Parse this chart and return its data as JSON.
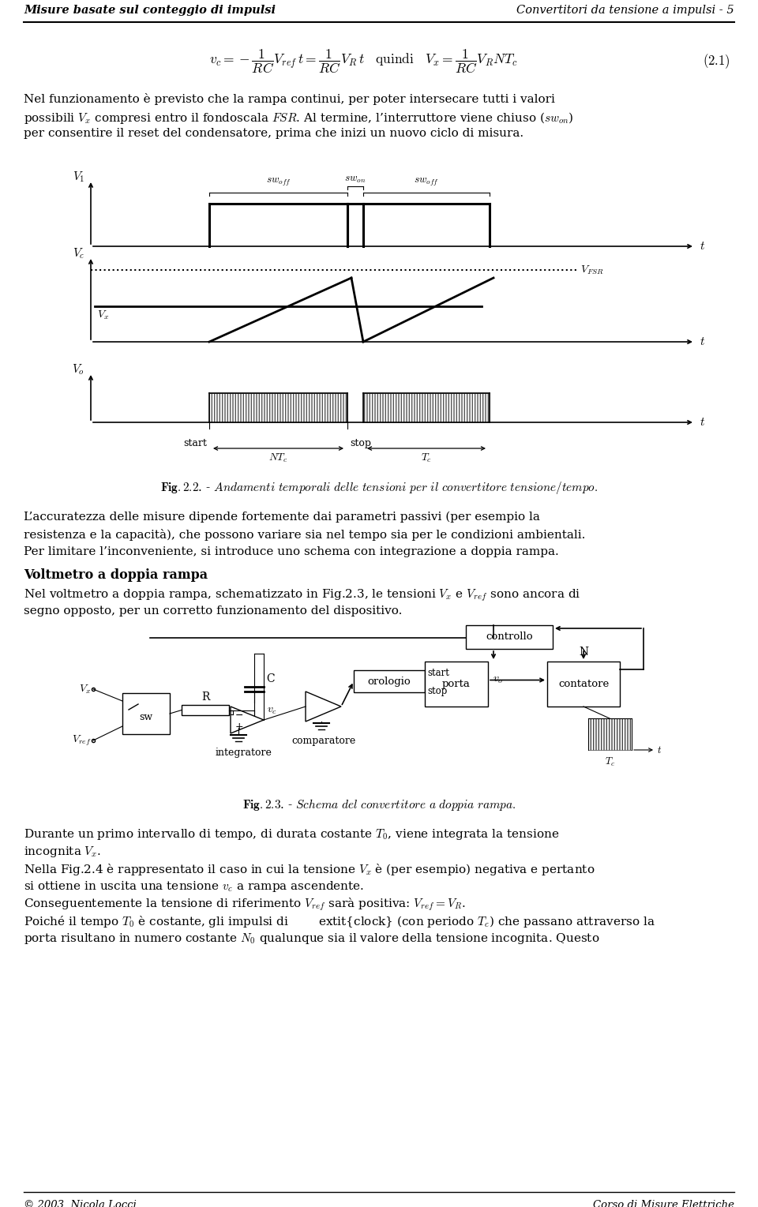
{
  "title_left": "Misure basate sul conteggio di impulsi",
  "title_right": "Convertitori da tensione a impulsi - 5",
  "bg_color": "#ffffff",
  "fig_width": 9.6,
  "fig_height": 15.29,
  "footer_left": "© 2003, Nicola Locci",
  "footer_right": "Corso di Misure Elettriche"
}
